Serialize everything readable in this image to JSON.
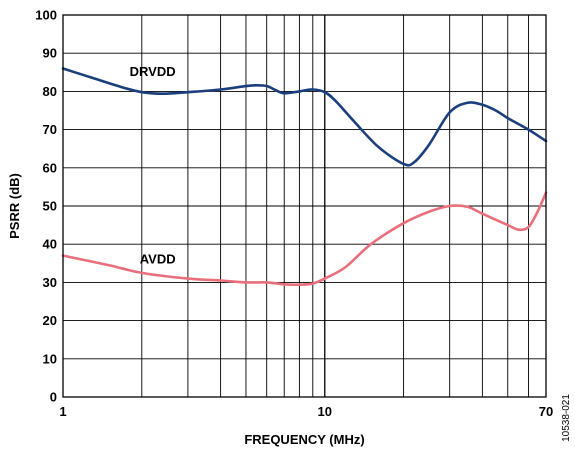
{
  "chart_data": {
    "type": "line",
    "title": "",
    "xlabel": "FREQUENCY (MHz)",
    "ylabel": "PSRR (dB)",
    "xscale": "log",
    "xlim": [
      1,
      70
    ],
    "ylim": [
      0,
      100
    ],
    "grid": true,
    "legend": "inline labels",
    "x_tick_labels": [
      {
        "value": 1,
        "label": "1"
      },
      {
        "value": 10,
        "label": "10"
      },
      {
        "value": 70,
        "label": "70"
      }
    ],
    "x_gridlines": [
      2,
      3,
      4,
      5,
      6,
      7,
      8,
      9,
      10,
      20,
      30,
      40,
      50,
      60
    ],
    "y_ticks": [
      0,
      10,
      20,
      30,
      40,
      50,
      60,
      70,
      80,
      90,
      100
    ],
    "series": [
      {
        "name": "DRVDD",
        "color": "#1b3f7c",
        "x": [
          1,
          1.3,
          1.7,
          2,
          2.4,
          3,
          4,
          5,
          5.5,
          6,
          6.5,
          7,
          8,
          9,
          10,
          11,
          13,
          16,
          20,
          22,
          25,
          30,
          35,
          40,
          45,
          50,
          60,
          70
        ],
        "y": [
          86,
          83.5,
          81,
          79.8,
          79.4,
          79.8,
          80.5,
          81.4,
          81.6,
          81.4,
          80.3,
          79.5,
          80,
          80.5,
          79.8,
          77.5,
          72,
          65.5,
          61,
          61.5,
          66,
          74.5,
          77,
          76.5,
          75,
          73,
          70,
          67
        ]
      },
      {
        "name": "AVDD",
        "color": "#e8707c",
        "x": [
          1,
          1.5,
          2,
          3,
          4,
          5,
          6,
          7,
          8,
          9,
          10,
          12,
          15,
          20,
          25,
          30,
          35,
          40,
          50,
          55,
          60,
          65,
          70
        ],
        "y": [
          37,
          34.5,
          32.5,
          31,
          30.5,
          30,
          30,
          29.5,
          29.4,
          29.7,
          31,
          34,
          40,
          45.5,
          48.5,
          50,
          49.8,
          48,
          45,
          43.8,
          44.5,
          48.5,
          53.5
        ]
      }
    ],
    "annotations": [
      {
        "text": "DRVDD",
        "series": "DRVDD",
        "x": 2.2,
        "y": 84
      },
      {
        "text": "AVDD",
        "series": "AVDD",
        "x": 2.3,
        "y": 35
      }
    ],
    "figure_id": "10538-021"
  }
}
